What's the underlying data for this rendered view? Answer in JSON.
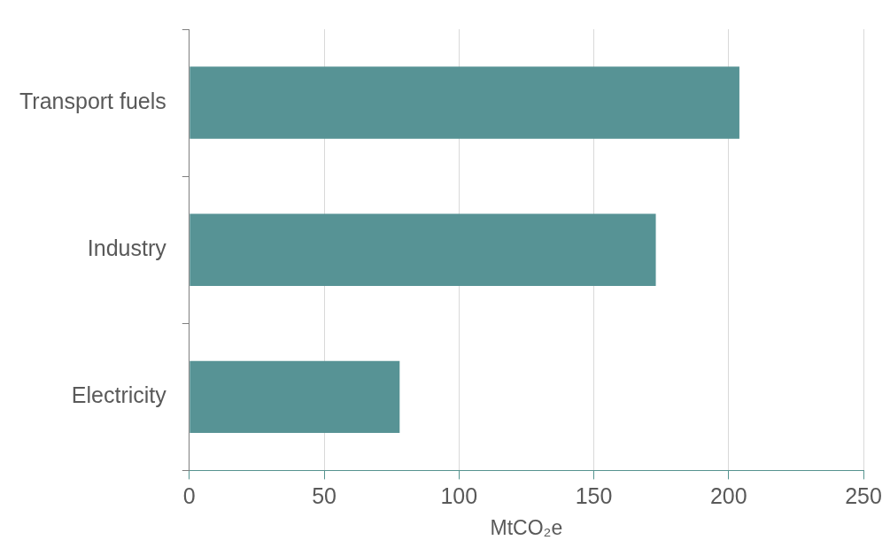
{
  "chart_data": {
    "type": "bar",
    "orientation": "horizontal",
    "xlabel": "MtCO₂e",
    "categories": [
      "Transport fuels",
      "Industry",
      "Electricity"
    ],
    "values": [
      204,
      173,
      78
    ],
    "color": "#579395",
    "xlim": [
      0,
      250
    ],
    "xticks": [
      0,
      50,
      100,
      150,
      200,
      250
    ],
    "grid": "x",
    "legend": false
  }
}
